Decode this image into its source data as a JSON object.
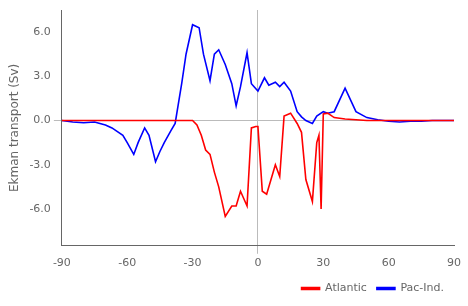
{
  "chart_data": {
    "type": "line",
    "y_label": "Ekman transport (Sv)",
    "series": [
      {
        "name": "Atlantic",
        "color": "#ff0000",
        "x": [
          -90,
          -75,
          -65,
          -60,
          -55,
          -50,
          -45,
          -40,
          -35,
          -30,
          -28,
          -26,
          -24,
          -22,
          -20,
          -18,
          -15,
          -12,
          -10,
          -8,
          -5,
          -3,
          -1,
          0,
          2,
          4,
          6,
          8,
          10,
          12,
          15,
          18,
          20,
          22,
          25,
          27,
          28,
          29,
          30,
          32,
          35,
          40,
          50,
          60,
          70,
          80,
          90
        ],
        "values": [
          0,
          0,
          0,
          0,
          0,
          0,
          0,
          0,
          0,
          0,
          -0.3,
          -1.0,
          -2.0,
          -2.3,
          -3.5,
          -4.5,
          -6.5,
          -5.8,
          -5.8,
          -4.8,
          -5.8,
          -0.5,
          -0.4,
          -0.4,
          -4.8,
          -5.0,
          -4.0,
          -3.0,
          -3.8,
          0.3,
          0.5,
          -0.2,
          -0.8,
          -4.0,
          -5.5,
          -1.5,
          -1.0,
          -6.0,
          0.45,
          0.5,
          0.2,
          0.1,
          0,
          0,
          0,
          0,
          0
        ]
      },
      {
        "name": "Pac-Ind.",
        "color": "#0000ff",
        "x": [
          -90,
          -85,
          -80,
          -75,
          -70,
          -67,
          -65,
          -62,
          -60,
          -57,
          -55,
          -52,
          -50,
          -47,
          -45,
          -43,
          -40,
          -38,
          -35,
          -33,
          -30,
          -27,
          -25,
          -22,
          -20,
          -18,
          -15,
          -12,
          -10,
          -8,
          -5,
          -3,
          0,
          3,
          5,
          8,
          10,
          12,
          15,
          18,
          20,
          22,
          25,
          27,
          30,
          32,
          35,
          40,
          45,
          50,
          55,
          60,
          65,
          70,
          75,
          80,
          85,
          90
        ],
        "values": [
          0.0,
          -0.1,
          -0.15,
          -0.1,
          -0.3,
          -0.5,
          -0.7,
          -1.0,
          -1.5,
          -2.3,
          -1.5,
          -0.5,
          -1.0,
          -2.8,
          -2.1,
          -1.5,
          -0.7,
          -0.2,
          2.5,
          4.5,
          6.5,
          6.3,
          4.5,
          2.7,
          4.5,
          4.8,
          3.8,
          2.5,
          1.0,
          2.3,
          4.6,
          2.5,
          2.0,
          2.9,
          2.4,
          2.6,
          2.3,
          2.6,
          2.0,
          0.6,
          0.25,
          0.0,
          -0.2,
          0.3,
          0.6,
          0.5,
          0.6,
          2.2,
          0.6,
          0.2,
          0.05,
          -0.05,
          -0.1,
          -0.05,
          -0.05,
          0.0,
          0.0,
          0.0
        ]
      }
    ],
    "xlim": [
      -90,
      90
    ],
    "xticks": [
      -90,
      -60,
      -30,
      0,
      30,
      60,
      90
    ],
    "ylim": [
      -8.5,
      7.5
    ],
    "yticks": [
      {
        "value": -6.0,
        "label": "-6.0"
      },
      {
        "value": -3.0,
        "label": "-3.0"
      },
      {
        "value": 0.0,
        "label": "0.0"
      },
      {
        "value": 3.0,
        "label": "3.0"
      },
      {
        "value": 6.0,
        "label": "6.0"
      }
    ],
    "hlines": [
      0
    ],
    "vlines": [
      0
    ],
    "grid": false,
    "legend": "lower right"
  }
}
